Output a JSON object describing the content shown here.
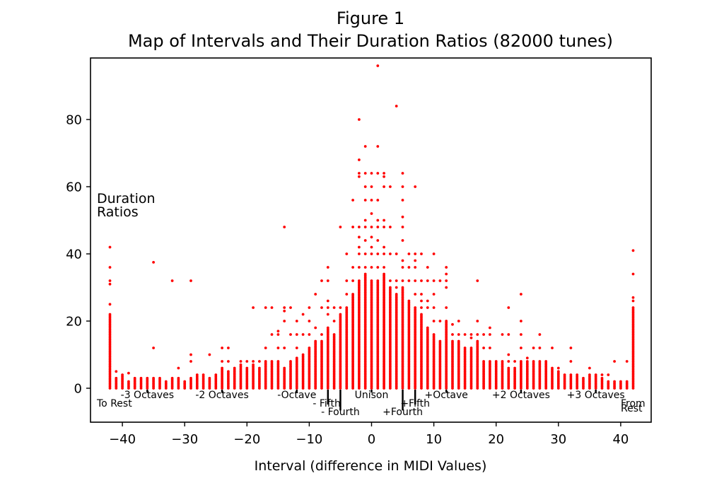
{
  "chart_data": {
    "type": "scatter",
    "title_line1": "Figure 1",
    "title_line2": "Map of Intervals and Their Duration Ratios (82000 tunes)",
    "xlabel": "Interval (difference in MIDI Values)",
    "ylabel_annotation": [
      "Duration",
      "Ratios"
    ],
    "xlim": [
      -45,
      45
    ],
    "ylim": [
      -10,
      98
    ],
    "xticks": [
      -40,
      -30,
      -20,
      -10,
      0,
      10,
      20,
      30,
      40
    ],
    "yticks": [
      0,
      20,
      40,
      60,
      80
    ],
    "grid": false,
    "marker_color": "#ff0000",
    "columns": [
      {
        "x": -42,
        "dense_max": 22,
        "outliers": [
          25,
          31,
          32,
          36,
          42
        ]
      },
      {
        "x": -41,
        "dense_max": 3,
        "outliers": [
          5
        ]
      },
      {
        "x": -40,
        "dense_max": 4,
        "outliers": []
      },
      {
        "x": -39,
        "dense_max": 2,
        "outliers": [
          4.5
        ]
      },
      {
        "x": -38,
        "dense_max": 3,
        "outliers": []
      },
      {
        "x": -37,
        "dense_max": 3,
        "outliers": []
      },
      {
        "x": -36,
        "dense_max": 3,
        "outliers": []
      },
      {
        "x": -35,
        "dense_max": 3,
        "outliers": [
          12,
          37.5
        ]
      },
      {
        "x": -34,
        "dense_max": 3,
        "outliers": []
      },
      {
        "x": -33,
        "dense_max": 2,
        "outliers": []
      },
      {
        "x": -32,
        "dense_max": 3,
        "outliers": [
          32
        ]
      },
      {
        "x": -31,
        "dense_max": 3,
        "outliers": [
          6
        ]
      },
      {
        "x": -30,
        "dense_max": 2,
        "outliers": []
      },
      {
        "x": -29,
        "dense_max": 3,
        "outliers": [
          8,
          10,
          32
        ]
      },
      {
        "x": -28,
        "dense_max": 4,
        "outliers": []
      },
      {
        "x": -27,
        "dense_max": 4,
        "outliers": []
      },
      {
        "x": -26,
        "dense_max": 3,
        "outliers": [
          10
        ]
      },
      {
        "x": -25,
        "dense_max": 4,
        "outliers": []
      },
      {
        "x": -24,
        "dense_max": 6,
        "outliers": [
          8,
          12
        ]
      },
      {
        "x": -23,
        "dense_max": 5,
        "outliers": [
          8,
          12
        ]
      },
      {
        "x": -22,
        "dense_max": 6,
        "outliers": []
      },
      {
        "x": -21,
        "dense_max": 7,
        "outliers": [
          8
        ]
      },
      {
        "x": -20,
        "dense_max": 6,
        "outliers": [
          8
        ]
      },
      {
        "x": -19,
        "dense_max": 7,
        "outliers": [
          8,
          24
        ]
      },
      {
        "x": -18,
        "dense_max": 6,
        "outliers": [
          8
        ]
      },
      {
        "x": -17,
        "dense_max": 8,
        "outliers": [
          12,
          24
        ]
      },
      {
        "x": -16,
        "dense_max": 8,
        "outliers": [
          16,
          24
        ]
      },
      {
        "x": -15,
        "dense_max": 8,
        "outliers": [
          12,
          16,
          17
        ]
      },
      {
        "x": -14,
        "dense_max": 6,
        "outliers": [
          12,
          20,
          23,
          24,
          48
        ]
      },
      {
        "x": -13,
        "dense_max": 8,
        "outliers": [
          16,
          24
        ]
      },
      {
        "x": -12,
        "dense_max": 9,
        "outliers": [
          12,
          16,
          20
        ]
      },
      {
        "x": -11,
        "dense_max": 10,
        "outliers": [
          16,
          22
        ]
      },
      {
        "x": -10,
        "dense_max": 12,
        "outliers": [
          16,
          20,
          24
        ]
      },
      {
        "x": -9,
        "dense_max": 14,
        "outliers": [
          18,
          28
        ]
      },
      {
        "x": -8,
        "dense_max": 14,
        "outliers": [
          16,
          24,
          32
        ]
      },
      {
        "x": -7,
        "dense_max": 18,
        "outliers": [
          22,
          24,
          26,
          32,
          36
        ]
      },
      {
        "x": -6,
        "dense_max": 16,
        "outliers": [
          20,
          24
        ]
      },
      {
        "x": -5,
        "dense_max": 22,
        "outliers": [
          24,
          48
        ]
      },
      {
        "x": -4,
        "dense_max": 24,
        "outliers": [
          28,
          32,
          40
        ]
      },
      {
        "x": -3,
        "dense_max": 28,
        "outliers": [
          32,
          36,
          48,
          56
        ]
      },
      {
        "x": -2,
        "dense_max": 32,
        "outliers": [
          36,
          40,
          42,
          45,
          48,
          63,
          64,
          68,
          80
        ]
      },
      {
        "x": -1,
        "dense_max": 34,
        "outliers": [
          36,
          40,
          44,
          48,
          50,
          56,
          60,
          64,
          72
        ]
      },
      {
        "x": 0,
        "dense_max": 32,
        "outliers": [
          36,
          40,
          42,
          45,
          48,
          52,
          56,
          60,
          64
        ]
      },
      {
        "x": 1,
        "dense_max": 32,
        "outliers": [
          36,
          40,
          44,
          48,
          50,
          56,
          64,
          72,
          96
        ]
      },
      {
        "x": 2,
        "dense_max": 34,
        "outliers": [
          36,
          40,
          42,
          48,
          50,
          60,
          63,
          64
        ]
      },
      {
        "x": 3,
        "dense_max": 30,
        "outliers": [
          32,
          40,
          48,
          60
        ]
      },
      {
        "x": 4,
        "dense_max": 28,
        "outliers": [
          30,
          32,
          40,
          84
        ]
      },
      {
        "x": 5,
        "dense_max": 30,
        "outliers": [
          32,
          36,
          38,
          44,
          48,
          51,
          56,
          60,
          64
        ]
      },
      {
        "x": 6,
        "dense_max": 26,
        "outliers": [
          32,
          36,
          40
        ]
      },
      {
        "x": 7,
        "dense_max": 24,
        "outliers": [
          28,
          32,
          36,
          38,
          40,
          60
        ]
      },
      {
        "x": 8,
        "dense_max": 22,
        "outliers": [
          24,
          26,
          28,
          32,
          40
        ]
      },
      {
        "x": 9,
        "dense_max": 18,
        "outliers": [
          24,
          26,
          32,
          36
        ]
      },
      {
        "x": 10,
        "dense_max": 16,
        "outliers": [
          20,
          24,
          28,
          32,
          40
        ]
      },
      {
        "x": 11,
        "dense_max": 14,
        "outliers": [
          20,
          32
        ]
      },
      {
        "x": 12,
        "dense_max": 20,
        "outliers": [
          24,
          30,
          32,
          34,
          36
        ]
      },
      {
        "x": 13,
        "dense_max": 14,
        "outliers": [
          16,
          19
        ]
      },
      {
        "x": 14,
        "dense_max": 14,
        "outliers": [
          16,
          20
        ]
      },
      {
        "x": 15,
        "dense_max": 12,
        "outliers": [
          16
        ]
      },
      {
        "x": 16,
        "dense_max": 12,
        "outliers": [
          15,
          16
        ]
      },
      {
        "x": 17,
        "dense_max": 14,
        "outliers": [
          16,
          20,
          32
        ]
      },
      {
        "x": 18,
        "dense_max": 8,
        "outliers": [
          12,
          16
        ]
      },
      {
        "x": 19,
        "dense_max": 8,
        "outliers": [
          12,
          16,
          18
        ]
      },
      {
        "x": 20,
        "dense_max": 8,
        "outliers": []
      },
      {
        "x": 21,
        "dense_max": 8,
        "outliers": [
          16
        ]
      },
      {
        "x": 22,
        "dense_max": 6,
        "outliers": [
          8,
          10,
          16,
          24
        ]
      },
      {
        "x": 23,
        "dense_max": 6,
        "outliers": [
          8
        ]
      },
      {
        "x": 24,
        "dense_max": 8,
        "outliers": [
          12,
          16,
          20,
          28
        ]
      },
      {
        "x": 25,
        "dense_max": 8,
        "outliers": [
          9
        ]
      },
      {
        "x": 26,
        "dense_max": 8,
        "outliers": [
          12
        ]
      },
      {
        "x": 27,
        "dense_max": 8,
        "outliers": [
          12,
          16
        ]
      },
      {
        "x": 28,
        "dense_max": 8,
        "outliers": []
      },
      {
        "x": 29,
        "dense_max": 6,
        "outliers": [
          12
        ]
      },
      {
        "x": 30,
        "dense_max": 5,
        "outliers": [
          6
        ]
      },
      {
        "x": 31,
        "dense_max": 4,
        "outliers": []
      },
      {
        "x": 32,
        "dense_max": 4,
        "outliers": [
          8,
          12
        ]
      },
      {
        "x": 33,
        "dense_max": 4,
        "outliers": []
      },
      {
        "x": 34,
        "dense_max": 3,
        "outliers": []
      },
      {
        "x": 35,
        "dense_max": 4,
        "outliers": [
          6
        ]
      },
      {
        "x": 36,
        "dense_max": 4,
        "outliers": []
      },
      {
        "x": 37,
        "dense_max": 3,
        "outliers": [
          4
        ]
      },
      {
        "x": 38,
        "dense_max": 2,
        "outliers": [
          4
        ]
      },
      {
        "x": 39,
        "dense_max": 2,
        "outliers": [
          8
        ]
      },
      {
        "x": 40,
        "dense_max": 2,
        "outliers": []
      },
      {
        "x": 41,
        "dense_max": 2,
        "outliers": [
          8
        ]
      },
      {
        "x": 42,
        "dense_max": 24,
        "outliers": [
          26,
          27,
          34,
          41
        ]
      }
    ],
    "annotations": [
      {
        "text": "To Rest",
        "x": -42,
        "row": 2
      },
      {
        "text": "-3 Octaves",
        "x": -36,
        "row": 1
      },
      {
        "text": "-2 Octaves",
        "x": -24,
        "row": 1
      },
      {
        "text": "-Octave",
        "x": -12,
        "row": 1
      },
      {
        "text": "- Fifth",
        "x": -7,
        "row": 2
      },
      {
        "text": "- Fourth",
        "x": -5,
        "row": 3
      },
      {
        "text": "Unison",
        "x": 0,
        "row": 1
      },
      {
        "text": "+Fourth",
        "x": 5,
        "row": 3
      },
      {
        "text": "+Fifth",
        "x": 7,
        "row": 2
      },
      {
        "text": "+Octave",
        "x": 12,
        "row": 1
      },
      {
        "text": "+2 Octaves",
        "x": 24,
        "row": 1
      },
      {
        "text": "+3 Octaves",
        "x": 36,
        "row": 1
      },
      {
        "text": "From",
        "x": 42,
        "row": 2
      },
      {
        "text": "Rest",
        "x": 42,
        "row": 2.6
      }
    ],
    "marker_lines": [
      {
        "x": -36,
        "depth": 1
      },
      {
        "x": -24,
        "depth": 1
      },
      {
        "x": -12,
        "depth": 1
      },
      {
        "x": -7,
        "depth": 5
      },
      {
        "x": -5,
        "depth": 7
      },
      {
        "x": 0,
        "depth": 1
      },
      {
        "x": 5,
        "depth": 7
      },
      {
        "x": 7,
        "depth": 5
      },
      {
        "x": 12,
        "depth": 1
      },
      {
        "x": 24,
        "depth": 1
      },
      {
        "x": 36,
        "depth": 1
      }
    ]
  }
}
